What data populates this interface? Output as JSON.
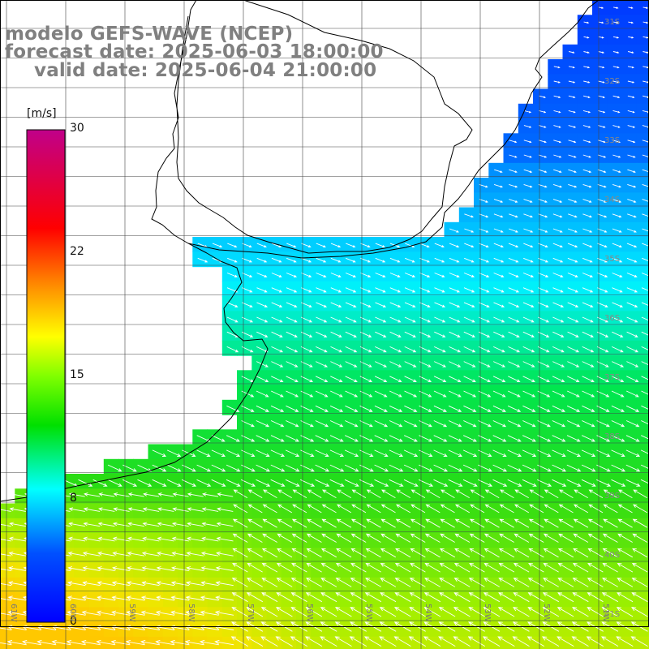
{
  "title": {
    "line1": "modelo GEFS-WAVE (NCEP)",
    "line2": "forecast date: 2025-06-03 18:00:00",
    "line3": "valid date: 2025-06-04 21:00:00"
  },
  "colorbar": {
    "unit": "[m/s]",
    "ticks": [
      "30",
      "22",
      "15",
      "8",
      "0"
    ]
  },
  "lat_labels": [
    "31S",
    "32S",
    "33S",
    "34S",
    "35S",
    "36S",
    "37S",
    "38S",
    "39S",
    "40S",
    "41S"
  ],
  "lon_labels": [
    "61W",
    "60W",
    "59W",
    "58W",
    "57W",
    "56W",
    "55W",
    "54W",
    "53W",
    "52W",
    "51W"
  ],
  "colors": {
    "land": "#ffffff",
    "grid": "#444444",
    "coast": "#000000",
    "arrow": "#ffffff"
  }
}
